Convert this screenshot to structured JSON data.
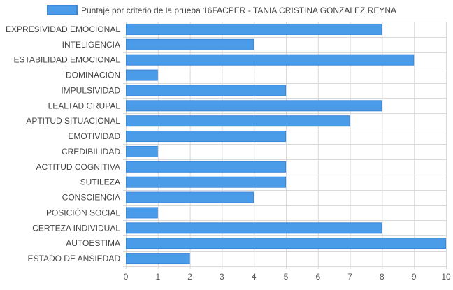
{
  "chart_data": {
    "type": "bar",
    "orientation": "horizontal",
    "categories": [
      "EXPRESIVIDAD EMOCIONAL",
      "INTELIGENCIA",
      "ESTABILIDAD EMOCIONAL",
      "DOMINACIÓN",
      "IMPULSIVIDAD",
      "LEALTAD GRUPAL",
      "APTITUD SITUACIONAL",
      "EMOTIVIDAD",
      "CREDIBILIDAD",
      "ACTITUD COGNITIVA",
      "SUTILEZA",
      "CONSCIENCIA",
      "POSICIÓN SOCIAL",
      "CERTEZA INDIVIDUAL",
      "AUTOESTIMA",
      "ESTADO DE ANSIEDAD"
    ],
    "series": [
      {
        "name": "Puntaje por criterio de la prueba 16FACPER - TANIA CRISTINA GONZALEZ REYNA",
        "values": [
          8,
          4,
          9,
          1,
          5,
          8,
          7,
          5,
          1,
          5,
          5,
          4,
          1,
          8,
          10,
          2
        ]
      }
    ],
    "x_ticks": [
      "0",
      "1",
      "2",
      "3",
      "4",
      "5",
      "6",
      "7",
      "8",
      "9",
      "10"
    ],
    "xlim": [
      0,
      10
    ],
    "grid": true,
    "legend_position": "top",
    "colors": {
      "bar_fill": "#4a9be8",
      "bar_stroke": "#3b87d8",
      "grid": "#d9d9d9",
      "axis_text": "#555555",
      "label_text": "#444444"
    }
  }
}
